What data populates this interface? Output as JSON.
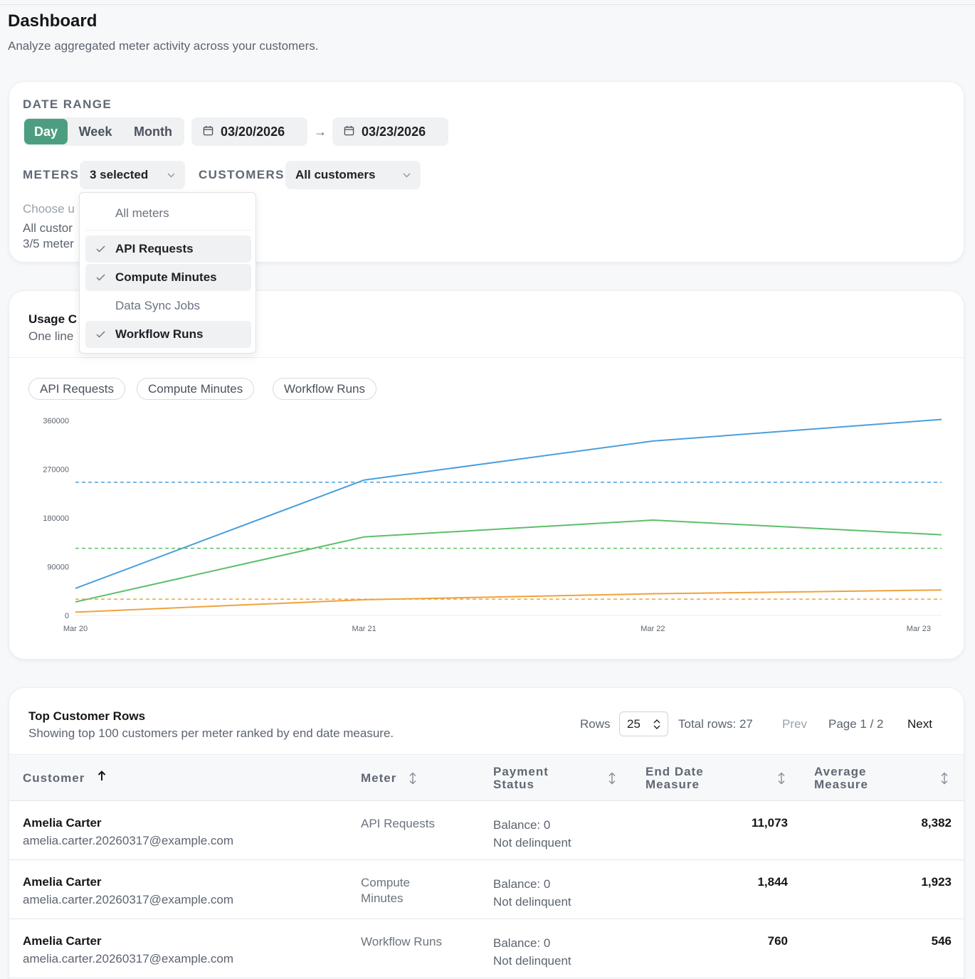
{
  "page": {
    "title": "Dashboard",
    "subtitle": "Analyze aggregated meter activity across your customers."
  },
  "filters": {
    "date_range_label": "DATE RANGE",
    "granularity": [
      "Day",
      "Week",
      "Month"
    ],
    "granularity_selected": "Day",
    "start_date": "03/20/2026",
    "end_date": "03/23/2026",
    "arrow": "→",
    "meters_label": "METERS",
    "meters_value": "3 selected",
    "customers_label": "CUSTOMERS",
    "customers_value": "All customers",
    "hint_line": "Choose u",
    "summary_customers": "All custor",
    "summary_meters": "3/5 meter"
  },
  "meters_dropdown": {
    "header": "All meters",
    "items": [
      {
        "label": "API Requests",
        "checked": true
      },
      {
        "label": "Compute Minutes",
        "checked": true
      },
      {
        "label": "Data Sync Jobs",
        "checked": false
      },
      {
        "label": "Workflow Runs",
        "checked": true
      }
    ]
  },
  "chart": {
    "title": "Usage C",
    "subtitle": "One line",
    "legend": [
      "API Requests",
      "Compute Minutes",
      "Workflow Runs"
    ]
  },
  "chart_data": {
    "type": "line",
    "x": [
      "Mar 20",
      "Mar 21",
      "Mar 22",
      "Mar 23"
    ],
    "y_ticks": [
      0,
      90000,
      180000,
      270000,
      360000
    ],
    "ylim": [
      0,
      360000
    ],
    "grid": false,
    "series": [
      {
        "name": "API Requests",
        "color": "#4a9fdc",
        "values": [
          50000,
          250000,
          322000,
          362000
        ],
        "average": 246000
      },
      {
        "name": "Compute Minutes",
        "color": "#5cbf6a",
        "values": [
          25000,
          145000,
          176000,
          149000
        ],
        "average": 124000
      },
      {
        "name": "Workflow Runs",
        "color": "#f0a23c",
        "values": [
          6000,
          29000,
          40000,
          47000
        ],
        "average": 30000
      }
    ]
  },
  "table": {
    "title": "Top Customer Rows",
    "subtitle": "Showing top 100 customers per meter ranked by end date measure.",
    "rows_label": "Rows",
    "rows_value": "25",
    "total_rows": "Total rows: 27",
    "prev": "Prev",
    "page": "Page 1 / 2",
    "next": "Next",
    "columns": {
      "customer": "Customer",
      "meter": "Meter",
      "payment_status_1": "Payment",
      "payment_status_2": "Status",
      "end_date_1": "End Date",
      "end_date_2": "Measure",
      "average_1": "Average",
      "average_2": "Measure"
    },
    "rows": [
      {
        "name": "Amelia Carter",
        "email": "amelia.carter.20260317@example.com",
        "meter": "API Requests",
        "balance": "Balance: 0",
        "delinquency": "Not delinquent",
        "end_measure": "11,073",
        "avg_measure": "8,382"
      },
      {
        "name": "Amelia Carter",
        "email": "amelia.carter.20260317@example.com",
        "meter": "Compute Minutes",
        "balance": "Balance: 0",
        "delinquency": "Not delinquent",
        "end_measure": "1,844",
        "avg_measure": "1,923"
      },
      {
        "name": "Amelia Carter",
        "email": "amelia.carter.20260317@example.com",
        "meter": "Workflow Runs",
        "balance": "Balance: 0",
        "delinquency": "Not delinquent",
        "end_measure": "760",
        "avg_measure": "546"
      }
    ]
  },
  "colors": {
    "accent": "#4d9e80",
    "api_requests": "#4a9fdc",
    "compute_minutes": "#5cbf6a",
    "workflow_runs": "#f0a23c"
  },
  "icons": {
    "calendar": "calendar-icon",
    "chevron": "chevron-down-icon",
    "check": "check-icon",
    "sort": "sort-icon",
    "sort_asc": "arrow-up-icon"
  }
}
